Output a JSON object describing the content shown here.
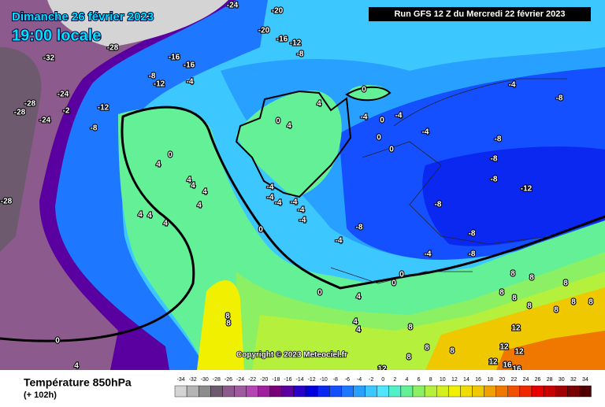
{
  "header": {
    "date": "Dimanche 26 février 2023",
    "time": "19:00 locale",
    "run": "Run GFS 12 Z du Mercredi 22 février 2023"
  },
  "footer": {
    "title": "Température 850hPa",
    "lead": "(+ 102h)",
    "copyright": "Copyright © 2023 Meteociel.fr"
  },
  "scale": {
    "values": [
      -34,
      -32,
      -30,
      -28,
      -26,
      -24,
      -22,
      -20,
      -18,
      -16,
      -14,
      -12,
      -10,
      -8,
      -6,
      -4,
      -2,
      0,
      2,
      4,
      6,
      8,
      10,
      12,
      14,
      16,
      18,
      20,
      22,
      24,
      26,
      28,
      30,
      32,
      34
    ],
    "colors": [
      "#d4d4d4",
      "#b4b4b4",
      "#8c8c8c",
      "#6e5a6e",
      "#8c5a8c",
      "#a05aa0",
      "#b446b4",
      "#a01ea0",
      "#780078",
      "#5a00a0",
      "#2800c8",
      "#0000dc",
      "#0a28f0",
      "#1450ff",
      "#1e78ff",
      "#28a0ff",
      "#3cc8ff",
      "#50e6ff",
      "#50f0c8",
      "#64f096",
      "#8cf064",
      "#b4f03c",
      "#d2f01e",
      "#f0f000",
      "#f0dc00",
      "#f0c800",
      "#f0a000",
      "#f07800",
      "#f05000",
      "#f02800",
      "#e60000",
      "#c80000",
      "#a00000",
      "#780000",
      "#500000"
    ]
  },
  "map_labels": [
    -24,
    -20,
    -20,
    -16,
    -12,
    -8,
    -16,
    -16,
    -8,
    -12,
    -4,
    -32,
    -28,
    -24,
    -28,
    -28,
    -24,
    -2,
    -12,
    -8,
    -28,
    0,
    4,
    0,
    4,
    -4,
    0,
    -4,
    -4,
    0,
    0,
    -4,
    -8,
    -8,
    -8,
    -12,
    -8,
    -8,
    -8,
    -8,
    -8,
    -4,
    -4,
    0,
    4,
    4,
    4,
    4,
    4,
    4,
    4,
    4,
    0,
    -4,
    -4,
    -4,
    -4,
    -4,
    -4,
    0,
    0,
    0,
    4,
    8,
    8,
    8,
    8,
    8,
    8,
    8,
    8,
    8,
    8,
    8,
    4,
    4,
    8,
    8,
    8,
    12,
    12,
    12,
    12,
    16,
    16,
    12,
    8,
    0,
    4
  ]
}
